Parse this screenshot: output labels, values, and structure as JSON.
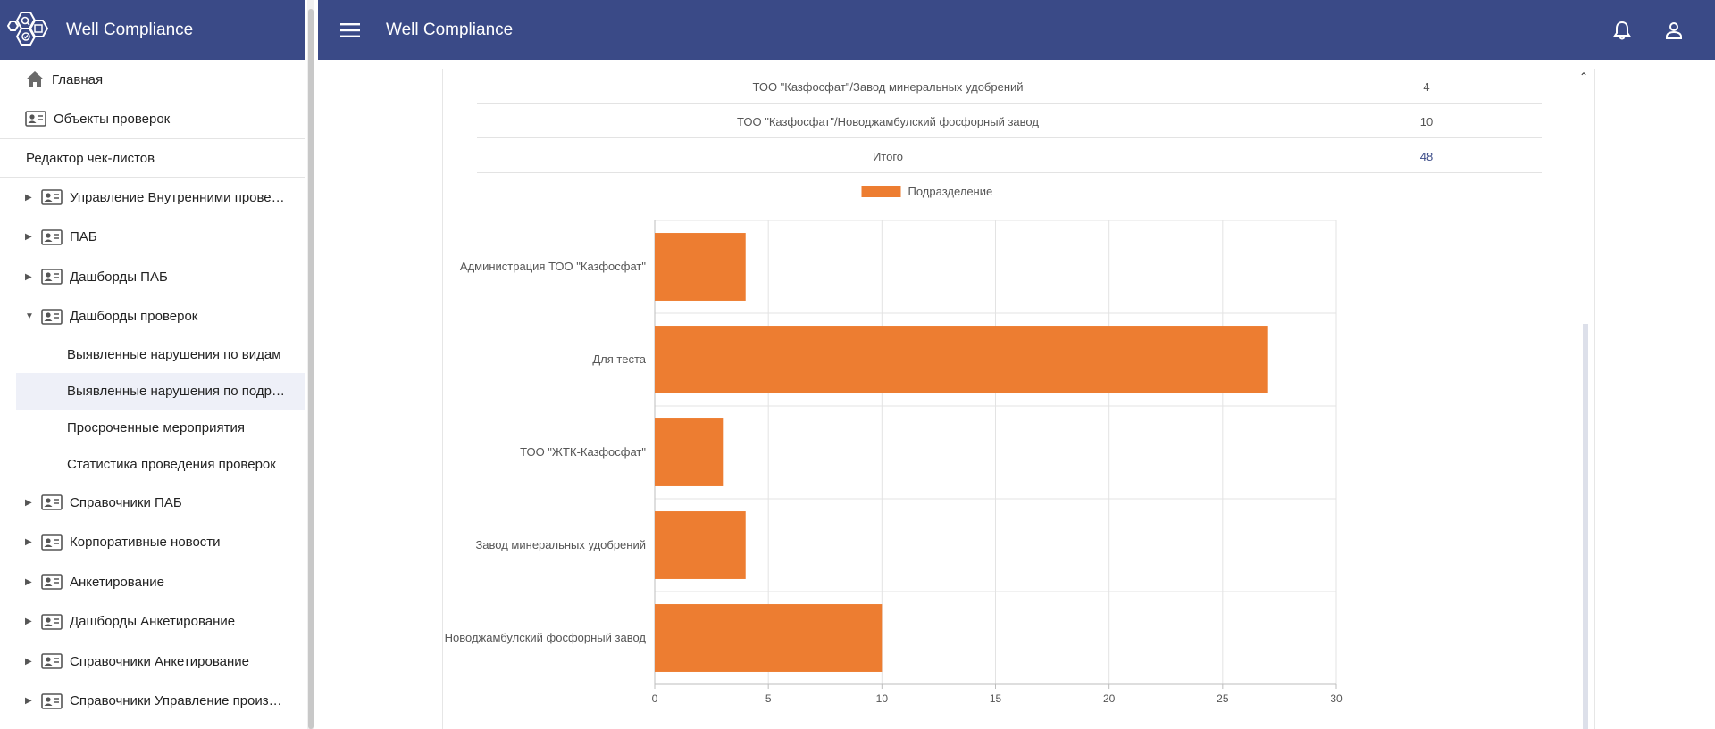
{
  "app": {
    "name": "Well Compliance"
  },
  "topbar": {
    "title": "Well Compliance",
    "icons": [
      "menu-icon",
      "bell-icon",
      "user-icon"
    ]
  },
  "sidebar": {
    "top_items": [
      {
        "label": "Главная",
        "icon": "home-icon"
      },
      {
        "label": "Объекты проверок",
        "icon": "id-card-icon"
      }
    ],
    "section_title": "Редактор чек-листов",
    "tree": [
      {
        "label": "Управление Внутренними проверками",
        "expanded": false
      },
      {
        "label": "ПАБ",
        "expanded": false
      },
      {
        "label": "Дашборды ПАБ",
        "expanded": false
      },
      {
        "label": "Дашборды проверок",
        "expanded": true
      }
    ],
    "sub_items": [
      {
        "label": "Выявленные нарушения по видам",
        "selected": false
      },
      {
        "label": "Выявленные нарушения по подразделениям",
        "selected": true
      },
      {
        "label": "Просроченные мероприятия",
        "selected": false
      },
      {
        "label": "Статистика проведения проверок",
        "selected": false
      }
    ],
    "tree_after": [
      {
        "label": "Справочники ПАБ"
      },
      {
        "label": "Корпоративные новости"
      },
      {
        "label": "Анкетирование"
      },
      {
        "label": "Дашборды Анкетирование"
      },
      {
        "label": "Справочники Анкетирование"
      },
      {
        "label": "Справочники Управление производством"
      }
    ]
  },
  "table": {
    "rows": [
      {
        "name": "ТОО \"Казфосфат\"/Завод минеральных удобрений",
        "count": "4"
      },
      {
        "name": "ТОО \"Казфосфат\"/Новоджамбулский фосфорный завод",
        "count": "10"
      },
      {
        "name": "Итого",
        "count": "48"
      }
    ]
  },
  "chart_data": {
    "type": "bar",
    "orientation": "horizontal",
    "categories": [
      "Администрация ТОО \"Казфосфат\"",
      "Для теста",
      "ТОО \"ЖТК-Казфосфат\"",
      "Завод минеральных удобрений",
      "Новоджамбулский фосфорный завод"
    ],
    "series": [
      {
        "name": "Подразделение",
        "values": [
          4,
          27,
          3,
          4,
          10
        ],
        "color": "#ed7d31"
      }
    ],
    "xlim": [
      0,
      30
    ],
    "xticks": [
      0,
      5,
      10,
      15,
      20,
      25,
      30
    ],
    "legend": "top-center",
    "grid": true
  }
}
